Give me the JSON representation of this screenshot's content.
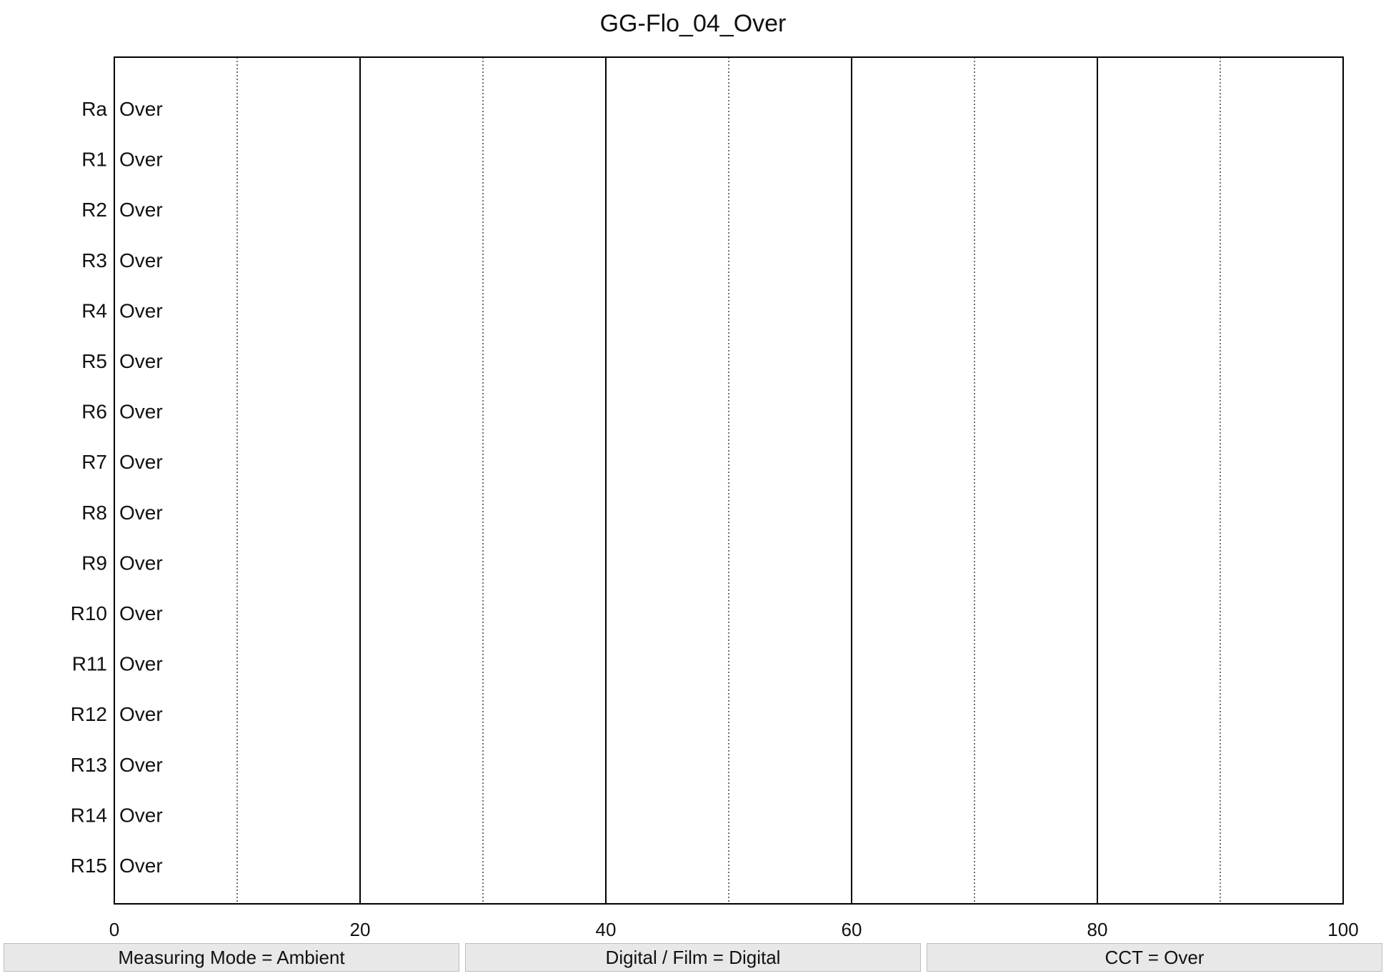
{
  "chart_data": {
    "type": "bar",
    "title": "GG-Flo_04_Over",
    "orientation": "horizontal",
    "categories": [
      "Ra",
      "R1",
      "R2",
      "R3",
      "R4",
      "R5",
      "R6",
      "R7",
      "R8",
      "R9",
      "R10",
      "R11",
      "R12",
      "R13",
      "R14",
      "R15"
    ],
    "value_labels": [
      "Over",
      "Over",
      "Over",
      "Over",
      "Over",
      "Over",
      "Over",
      "Over",
      "Over",
      "Over",
      "Over",
      "Over",
      "Over",
      "Over",
      "Over",
      "Over"
    ],
    "xlim": [
      0,
      100
    ],
    "x_ticks": [
      "0",
      "20",
      "40",
      "60",
      "80",
      "100"
    ],
    "major_gridlines": [
      20,
      40,
      60,
      80
    ],
    "minor_gridlines": [
      10,
      30,
      50,
      70,
      90
    ],
    "grid": true,
    "legend": "none",
    "colors": {
      "axis": "#000000",
      "grid_minor": "#444444",
      "text": "#111111"
    }
  },
  "status": [
    "Measuring Mode = Ambient",
    "Digital / Film = Digital",
    "CCT = Over"
  ]
}
